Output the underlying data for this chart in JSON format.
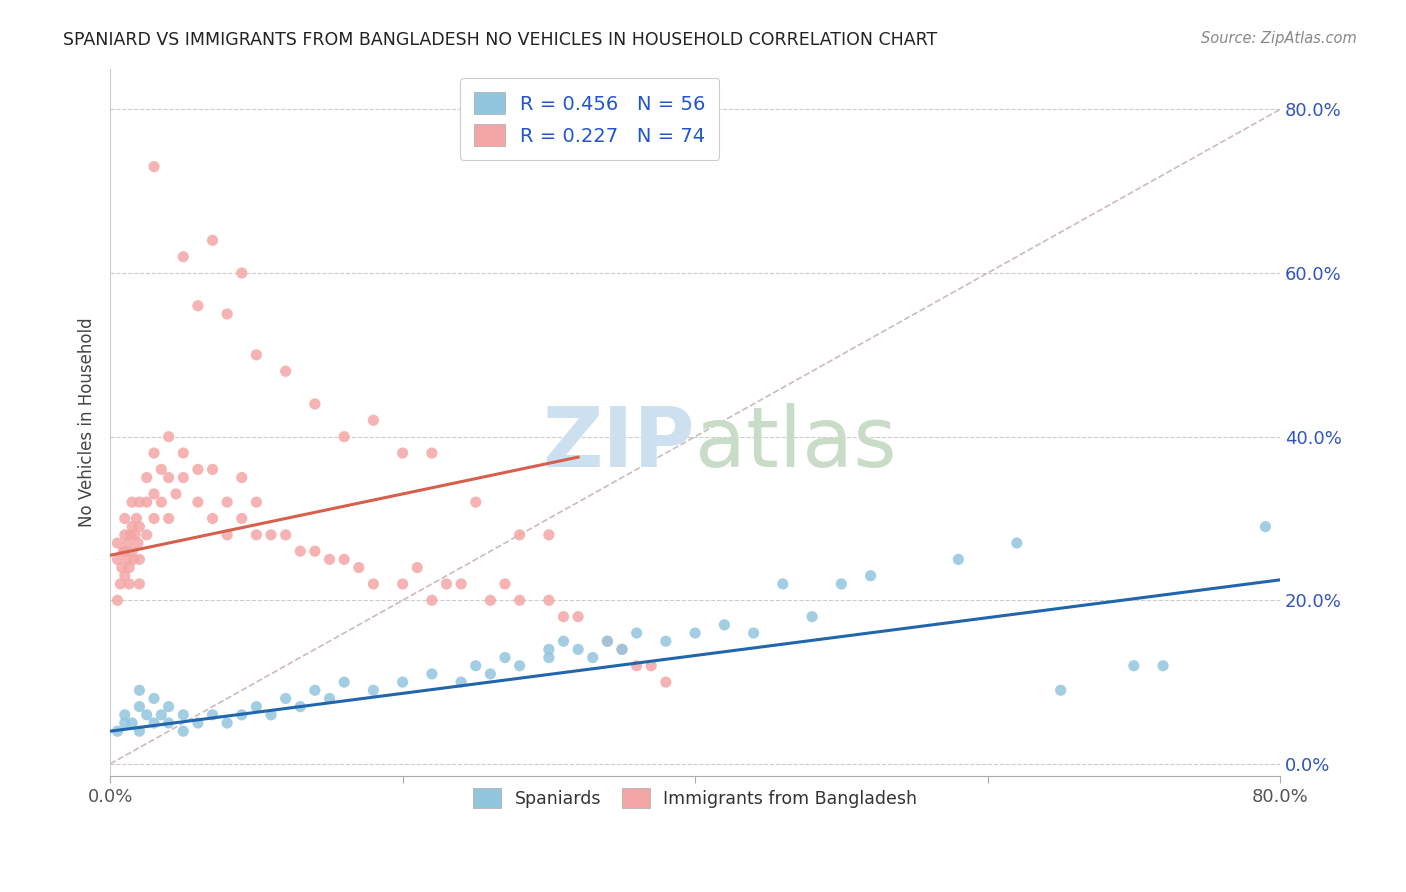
{
  "title": "SPANIARD VS IMMIGRANTS FROM BANGLADESH NO VEHICLES IN HOUSEHOLD CORRELATION CHART",
  "source": "Source: ZipAtlas.com",
  "ylabel": "No Vehicles in Household",
  "xmin": 0.0,
  "xmax": 0.8,
  "ymin": -0.015,
  "ymax": 0.85,
  "legend_blue_label": "R = 0.456   N = 56",
  "legend_pink_label": "R = 0.227   N = 74",
  "legend_bottom_blue": "Spaniards",
  "legend_bottom_pink": "Immigrants from Bangladesh",
  "blue_color": "#92c5de",
  "pink_color": "#f4a6a6",
  "blue_line_color": "#2166ac",
  "pink_line_color": "#d6604d",
  "diag_color": "#ccbbbb",
  "grid_color": "#cccccc",
  "right_tick_color": "#3355bb",
  "watermark_zip_color": "#cce0f0",
  "watermark_atlas_color": "#c8dcc8",
  "blue_line_x0": 0.0,
  "blue_line_x1": 0.8,
  "blue_line_y0": 0.04,
  "blue_line_y1": 0.225,
  "pink_line_x0": 0.0,
  "pink_line_x1": 0.32,
  "pink_line_y0": 0.255,
  "pink_line_y1": 0.375,
  "blue_x": [
    0.005,
    0.01,
    0.01,
    0.015,
    0.02,
    0.02,
    0.02,
    0.025,
    0.03,
    0.03,
    0.035,
    0.04,
    0.04,
    0.05,
    0.05,
    0.06,
    0.07,
    0.08,
    0.09,
    0.1,
    0.11,
    0.12,
    0.13,
    0.14,
    0.15,
    0.16,
    0.18,
    0.2,
    0.22,
    0.24,
    0.25,
    0.26,
    0.27,
    0.28,
    0.3,
    0.3,
    0.31,
    0.32,
    0.33,
    0.34,
    0.35,
    0.36,
    0.38,
    0.4,
    0.42,
    0.44,
    0.46,
    0.48,
    0.5,
    0.52,
    0.58,
    0.62,
    0.65,
    0.7,
    0.72,
    0.79
  ],
  "blue_y": [
    0.04,
    0.05,
    0.06,
    0.05,
    0.04,
    0.07,
    0.09,
    0.06,
    0.05,
    0.08,
    0.06,
    0.05,
    0.07,
    0.06,
    0.04,
    0.05,
    0.06,
    0.05,
    0.06,
    0.07,
    0.06,
    0.08,
    0.07,
    0.09,
    0.08,
    0.1,
    0.09,
    0.1,
    0.11,
    0.1,
    0.12,
    0.11,
    0.13,
    0.12,
    0.14,
    0.13,
    0.15,
    0.14,
    0.13,
    0.15,
    0.14,
    0.16,
    0.15,
    0.16,
    0.17,
    0.16,
    0.22,
    0.18,
    0.22,
    0.23,
    0.25,
    0.27,
    0.09,
    0.12,
    0.12,
    0.29
  ],
  "pink_x": [
    0.005,
    0.005,
    0.005,
    0.007,
    0.008,
    0.009,
    0.01,
    0.01,
    0.01,
    0.01,
    0.012,
    0.012,
    0.013,
    0.013,
    0.014,
    0.015,
    0.015,
    0.015,
    0.016,
    0.017,
    0.018,
    0.019,
    0.02,
    0.02,
    0.02,
    0.02,
    0.025,
    0.025,
    0.025,
    0.03,
    0.03,
    0.03,
    0.035,
    0.035,
    0.04,
    0.04,
    0.04,
    0.045,
    0.05,
    0.05,
    0.06,
    0.06,
    0.07,
    0.07,
    0.08,
    0.08,
    0.09,
    0.09,
    0.1,
    0.1,
    0.11,
    0.12,
    0.13,
    0.14,
    0.15,
    0.16,
    0.17,
    0.18,
    0.2,
    0.21,
    0.22,
    0.23,
    0.24,
    0.26,
    0.27,
    0.28,
    0.3,
    0.31,
    0.32,
    0.34,
    0.35,
    0.36,
    0.37,
    0.38
  ],
  "pink_y": [
    0.2,
    0.25,
    0.27,
    0.22,
    0.24,
    0.26,
    0.23,
    0.26,
    0.28,
    0.3,
    0.25,
    0.27,
    0.22,
    0.24,
    0.28,
    0.26,
    0.29,
    0.32,
    0.25,
    0.28,
    0.3,
    0.27,
    0.22,
    0.25,
    0.29,
    0.32,
    0.28,
    0.32,
    0.35,
    0.3,
    0.33,
    0.38,
    0.32,
    0.36,
    0.3,
    0.35,
    0.4,
    0.33,
    0.35,
    0.38,
    0.32,
    0.36,
    0.3,
    0.36,
    0.28,
    0.32,
    0.3,
    0.35,
    0.28,
    0.32,
    0.28,
    0.28,
    0.26,
    0.26,
    0.25,
    0.25,
    0.24,
    0.22,
    0.22,
    0.24,
    0.2,
    0.22,
    0.22,
    0.2,
    0.22,
    0.2,
    0.2,
    0.18,
    0.18,
    0.15,
    0.14,
    0.12,
    0.12,
    0.1
  ],
  "pink_outliers_x": [
    0.03,
    0.05,
    0.06,
    0.07,
    0.08,
    0.09,
    0.1,
    0.12,
    0.14,
    0.16,
    0.18,
    0.2,
    0.22,
    0.25,
    0.28,
    0.3
  ],
  "pink_outliers_y": [
    0.73,
    0.62,
    0.56,
    0.64,
    0.55,
    0.6,
    0.5,
    0.48,
    0.44,
    0.4,
    0.42,
    0.38,
    0.38,
    0.32,
    0.28,
    0.28
  ]
}
